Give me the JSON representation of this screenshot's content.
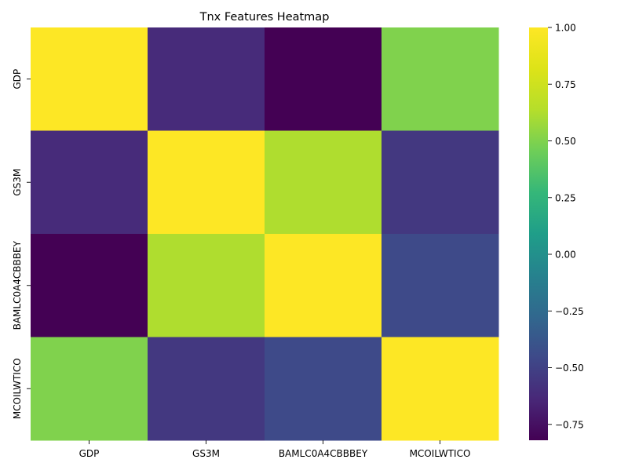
{
  "chart_data": {
    "type": "heatmap",
    "title": "Tnx Features Heatmap",
    "xlabel": "",
    "ylabel": "",
    "x_categories": [
      "GDP",
      "GS3M",
      "BAMLC0A4CBBBEY",
      "MCOILWTICO"
    ],
    "y_categories": [
      "GDP",
      "GS3M",
      "BAMLC0A4CBBBEY",
      "MCOILWTICO"
    ],
    "values": [
      [
        1.0,
        -0.62,
        -0.82,
        0.5
      ],
      [
        -0.62,
        1.0,
        0.62,
        -0.55
      ],
      [
        -0.82,
        0.62,
        1.0,
        -0.45
      ],
      [
        0.5,
        -0.55,
        -0.45,
        1.0
      ]
    ],
    "colorbar": {
      "colormap": "viridis",
      "vmin": -0.82,
      "vmax": 1.0,
      "ticks": [
        1.0,
        0.75,
        0.5,
        0.25,
        0.0,
        -0.25,
        -0.5,
        -0.75
      ],
      "tick_labels": [
        "1.00",
        "0.75",
        "0.50",
        "0.25",
        "0.00",
        "−0.25",
        "−0.50",
        "−0.75"
      ]
    },
    "annotations": false,
    "grid": false,
    "legend": "colorbar-right"
  }
}
